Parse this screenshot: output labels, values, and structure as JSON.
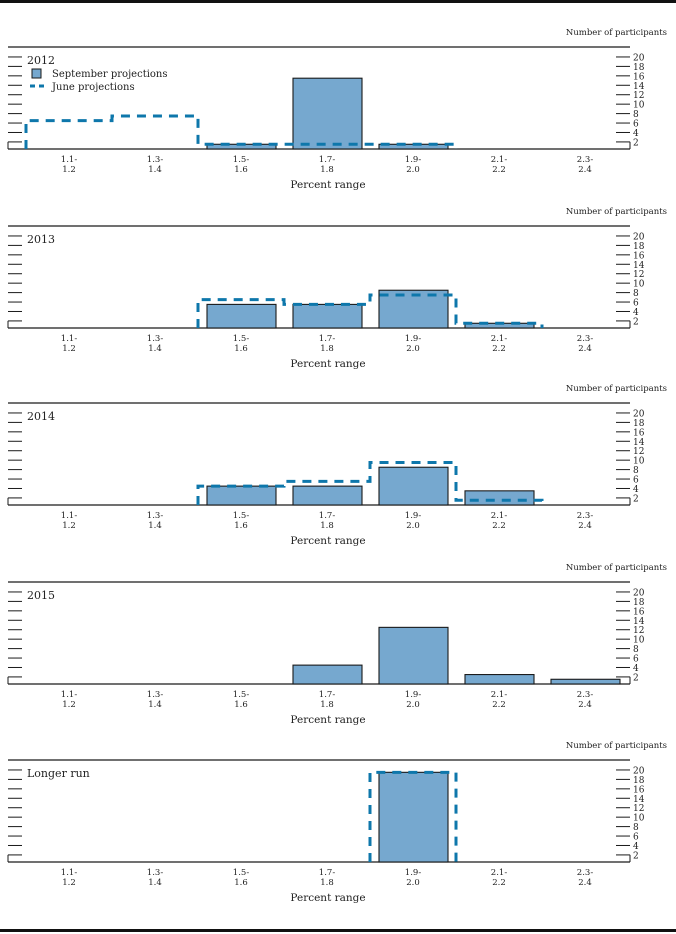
{
  "colors": {
    "september_fill": "#76a8cf",
    "bar_outline": "#1a1a1a",
    "june_line": "#0e77ab",
    "axis": "#1a1a1a"
  },
  "legend": {
    "september": "September projections",
    "june": "June projections"
  },
  "chart_data": [
    {
      "type": "bar",
      "title": "2012",
      "xlabel": "Percent range",
      "ylabel": "Number of participants",
      "categories": [
        "1.1-1.2",
        "1.3-1.4",
        "1.5-1.6",
        "1.7-1.8",
        "1.9-2.0",
        "2.1-2.2",
        "2.3-2.4"
      ],
      "category_lines": [
        [
          "1.1-",
          "1.2"
        ],
        [
          "1.3-",
          "1.4"
        ],
        [
          "1.5-",
          "1.6"
        ],
        [
          "1.7-",
          "1.8"
        ],
        [
          "1.9-",
          "2.0"
        ],
        [
          "2.1-",
          "2.2"
        ],
        [
          "2.3-",
          "2.4"
        ]
      ],
      "yticks": [
        2,
        4,
        6,
        8,
        10,
        12,
        14,
        16,
        18,
        20
      ],
      "ylim": [
        0,
        20
      ],
      "legend": "top-left",
      "series": [
        {
          "name": "September projections",
          "style": "bar",
          "values": [
            0,
            0,
            1,
            15,
            1,
            0,
            0
          ]
        },
        {
          "name": "June projections",
          "style": "dashed-step",
          "values": [
            6,
            7,
            1,
            1,
            1,
            0,
            0
          ]
        }
      ]
    },
    {
      "type": "bar",
      "title": "2013",
      "xlabel": "Percent range",
      "ylabel": "Number of participants",
      "categories": [
        "1.1-1.2",
        "1.3-1.4",
        "1.5-1.6",
        "1.7-1.8",
        "1.9-2.0",
        "2.1-2.2",
        "2.3-2.4"
      ],
      "category_lines": [
        [
          "1.1-",
          "1.2"
        ],
        [
          "1.3-",
          "1.4"
        ],
        [
          "1.5-",
          "1.6"
        ],
        [
          "1.7-",
          "1.8"
        ],
        [
          "1.9-",
          "2.0"
        ],
        [
          "2.1-",
          "2.2"
        ],
        [
          "2.3-",
          "2.4"
        ]
      ],
      "yticks": [
        2,
        4,
        6,
        8,
        10,
        12,
        14,
        16,
        18,
        20
      ],
      "ylim": [
        0,
        20
      ],
      "series": [
        {
          "name": "September projections",
          "style": "bar",
          "values": [
            0,
            0,
            5,
            5,
            8,
            1,
            0
          ]
        },
        {
          "name": "June projections",
          "style": "dashed-step",
          "values": [
            0,
            0,
            6,
            5,
            7,
            1,
            0
          ]
        }
      ]
    },
    {
      "type": "bar",
      "title": "2014",
      "xlabel": "Percent range",
      "ylabel": "Number of participants",
      "categories": [
        "1.1-1.2",
        "1.3-1.4",
        "1.5-1.6",
        "1.7-1.8",
        "1.9-2.0",
        "2.1-2.2",
        "2.3-2.4"
      ],
      "category_lines": [
        [
          "1.1-",
          "1.2"
        ],
        [
          "1.3-",
          "1.4"
        ],
        [
          "1.5-",
          "1.6"
        ],
        [
          "1.7-",
          "1.8"
        ],
        [
          "1.9-",
          "2.0"
        ],
        [
          "2.1-",
          "2.2"
        ],
        [
          "2.3-",
          "2.4"
        ]
      ],
      "yticks": [
        2,
        4,
        6,
        8,
        10,
        12,
        14,
        16,
        18,
        20
      ],
      "ylim": [
        0,
        20
      ],
      "series": [
        {
          "name": "September projections",
          "style": "bar",
          "values": [
            0,
            0,
            4,
            4,
            8,
            3,
            0
          ]
        },
        {
          "name": "June projections",
          "style": "dashed-step",
          "values": [
            0,
            0,
            4,
            5,
            9,
            1,
            0
          ]
        }
      ]
    },
    {
      "type": "bar",
      "title": "2015",
      "xlabel": "Percent range",
      "ylabel": "Number of participants",
      "categories": [
        "1.1-1.2",
        "1.3-1.4",
        "1.5-1.6",
        "1.7-1.8",
        "1.9-2.0",
        "2.1-2.2",
        "2.3-2.4"
      ],
      "category_lines": [
        [
          "1.1-",
          "1.2"
        ],
        [
          "1.3-",
          "1.4"
        ],
        [
          "1.5-",
          "1.6"
        ],
        [
          "1.7-",
          "1.8"
        ],
        [
          "1.9-",
          "2.0"
        ],
        [
          "2.1-",
          "2.2"
        ],
        [
          "2.3-",
          "2.4"
        ]
      ],
      "yticks": [
        2,
        4,
        6,
        8,
        10,
        12,
        14,
        16,
        18,
        20
      ],
      "ylim": [
        0,
        20
      ],
      "series": [
        {
          "name": "September projections",
          "style": "bar",
          "values": [
            0,
            0,
            0,
            4,
            12,
            2,
            1
          ]
        }
      ]
    },
    {
      "type": "bar",
      "title": "Longer run",
      "xlabel": "Percent range",
      "ylabel": "Number of participants",
      "categories": [
        "1.1-1.2",
        "1.3-1.4",
        "1.5-1.6",
        "1.7-1.8",
        "1.9-2.0",
        "2.1-2.2",
        "2.3-2.4"
      ],
      "category_lines": [
        [
          "1.1-",
          "1.2"
        ],
        [
          "1.3-",
          "1.4"
        ],
        [
          "1.5-",
          "1.6"
        ],
        [
          "1.7-",
          "1.8"
        ],
        [
          "1.9-",
          "2.0"
        ],
        [
          "2.1-",
          "2.2"
        ],
        [
          "2.3-",
          "2.4"
        ]
      ],
      "yticks": [
        2,
        4,
        6,
        8,
        10,
        12,
        14,
        16,
        18,
        20
      ],
      "ylim": [
        0,
        20
      ],
      "series": [
        {
          "name": "September projections",
          "style": "bar",
          "values": [
            0,
            0,
            0,
            0,
            19,
            0,
            0
          ]
        },
        {
          "name": "June projections",
          "style": "dashed-step",
          "values": [
            0,
            0,
            0,
            0,
            19,
            0,
            0
          ]
        }
      ]
    }
  ]
}
